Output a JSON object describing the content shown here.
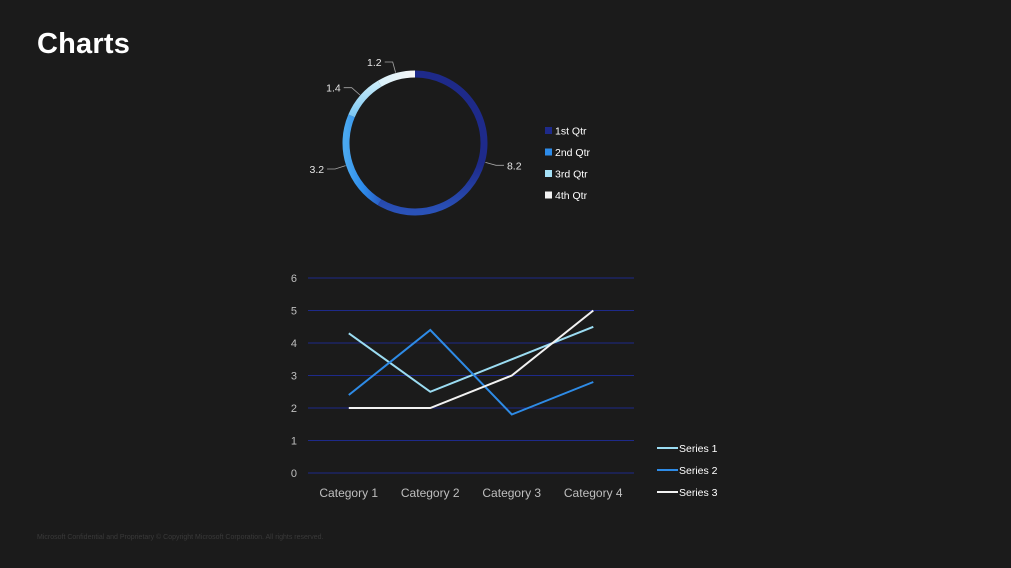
{
  "title": "Charts",
  "footer": "Microsoft Confidential and Proprietary © Copyright Microsoft Corporation. All rights reserved.",
  "colors": {
    "background": "#1b1b1b",
    "grid": "#1e2a8a",
    "axis_text": "#bfbfbf"
  },
  "chart_data": [
    {
      "type": "pie",
      "variant": "doughnut",
      "categories": [
        "1st Qtr",
        "2nd Qtr",
        "3rd Qtr",
        "4th Qtr"
      ],
      "values": [
        8.2,
        3.2,
        1.4,
        1.2
      ],
      "labels": [
        "8.2",
        "3.2",
        "1.4",
        "1.2"
      ],
      "colors": [
        "#1e2a8a",
        "#2d8ceb",
        "#a6e1f7",
        "#f2f2f2"
      ],
      "legend": "right"
    },
    {
      "type": "line",
      "categories": [
        "Category 1",
        "Category 2",
        "Category 3",
        "Category 4"
      ],
      "series": [
        {
          "name": "Series 1",
          "values": [
            4.3,
            2.5,
            3.5,
            4.5
          ],
          "color": "#9bdcf2"
        },
        {
          "name": "Series 2",
          "values": [
            2.4,
            4.4,
            1.8,
            2.8
          ],
          "color": "#2e8be6"
        },
        {
          "name": "Series 3",
          "values": [
            2,
            2,
            3,
            5
          ],
          "color": "#f2f2f2"
        }
      ],
      "yticks": [
        "0",
        "1",
        "2",
        "3",
        "4",
        "5",
        "6"
      ],
      "ylim": [
        0,
        6
      ],
      "grid": true,
      "legend": "bottom-right"
    }
  ]
}
